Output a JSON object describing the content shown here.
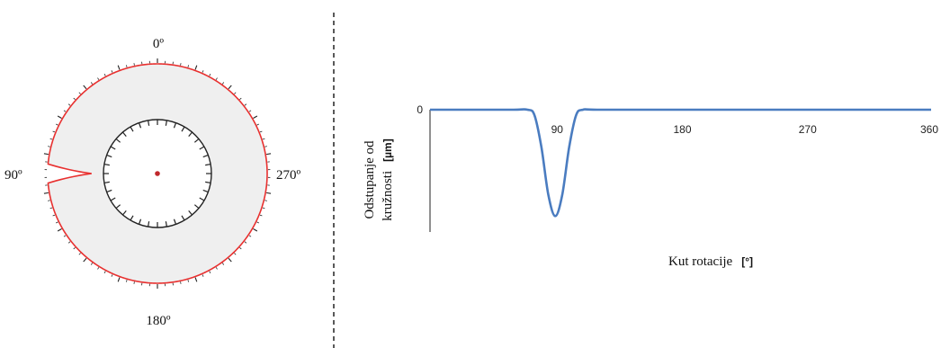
{
  "chart_data": [
    {
      "type": "polar",
      "angle_labels": [
        "0º",
        "90º",
        "180º",
        "270º"
      ],
      "angle_positions_deg": [
        0,
        90,
        180,
        270
      ],
      "direction": "counterclockwise",
      "profile": {
        "nominal_ratio": 1.0,
        "notch_center_deg": 90,
        "notch_halfwidth_deg": 5,
        "notch_min_ratio": 0.6
      },
      "colors": {
        "profile": "#e8302f",
        "fill": "#efefef",
        "ticks": "#222222",
        "center": "#c0282c"
      }
    },
    {
      "type": "line",
      "x": [
        0,
        30,
        60,
        70,
        75,
        80,
        85,
        90,
        95,
        100,
        105,
        110,
        120,
        180,
        270,
        360
      ],
      "y": [
        0,
        0,
        0,
        0,
        -0.05,
        -0.35,
        -0.8,
        -1,
        -0.8,
        -0.35,
        -0.05,
        0,
        0,
        0,
        0,
        0
      ],
      "xlim": [
        0,
        360
      ],
      "ylim": [
        -1.15,
        0
      ],
      "xticks": [
        "90",
        "180",
        "270",
        "360"
      ],
      "yticks": [
        "0"
      ],
      "xlabel": "Kut rotacije",
      "xlabel_unit": "[°]",
      "ylabel_line1": "Odstupanje od",
      "ylabel_line2": "kružnosti",
      "ylabel_unit": "[µm]",
      "colors": {
        "line": "#4a7cc0",
        "axis": "#222222"
      }
    }
  ]
}
